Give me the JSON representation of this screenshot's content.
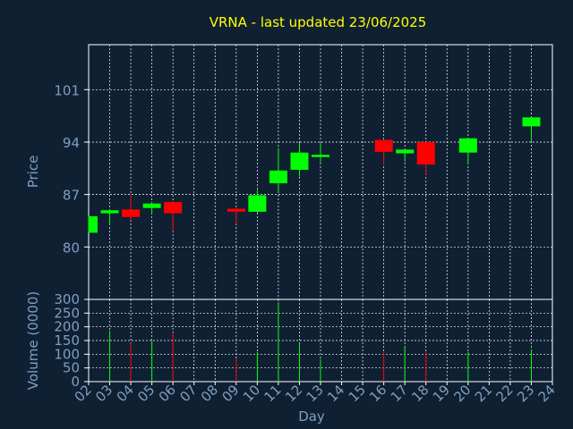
{
  "colors": {
    "background": "#0f2033",
    "title": "#ffff00",
    "axis_text": "#7f9fbf",
    "frame": "#ffffff",
    "grid": "#ffffff",
    "up": "#00ff00",
    "down": "#ff0000"
  },
  "chart_data": [
    {
      "type": "candlestick",
      "title": "VRNA - last updated 23/06/2025",
      "ylabel": "Price",
      "xlabel": "",
      "ylim": [
        73,
        107
      ],
      "yticks": [
        80,
        87,
        94,
        101
      ],
      "xlim": [
        2,
        24
      ],
      "grid": true,
      "candles": [
        {
          "day": 2,
          "open": 81.9,
          "close": 84.1,
          "high": 84.1,
          "low": 81.9
        },
        {
          "day": 3,
          "open": 84.5,
          "close": 84.9,
          "high": 85.0,
          "low": 83.0
        },
        {
          "day": 4,
          "open": 85.0,
          "close": 84.0,
          "high": 87.0,
          "low": 83.6
        },
        {
          "day": 5,
          "open": 85.2,
          "close": 85.8,
          "high": 86.0,
          "low": 84.4
        },
        {
          "day": 6,
          "open": 86.0,
          "close": 84.5,
          "high": 86.1,
          "low": 82.1
        },
        {
          "day": 9,
          "open": 85.1,
          "close": 84.7,
          "high": 85.2,
          "low": 83.1
        },
        {
          "day": 10,
          "open": 84.7,
          "close": 86.9,
          "high": 87.6,
          "low": 84.6
        },
        {
          "day": 11,
          "open": 88.5,
          "close": 90.2,
          "high": 93.2,
          "low": 87.4
        },
        {
          "day": 12,
          "open": 90.3,
          "close": 92.6,
          "high": 93.9,
          "low": 89.4
        },
        {
          "day": 13,
          "open": 92.0,
          "close": 92.3,
          "high": 93.9,
          "low": 91.3
        },
        {
          "day": 16,
          "open": 94.3,
          "close": 92.7,
          "high": 94.3,
          "low": 91.0
        },
        {
          "day": 17,
          "open": 92.5,
          "close": 93.0,
          "high": 93.0,
          "low": 91.4
        },
        {
          "day": 18,
          "open": 94.0,
          "close": 91.0,
          "high": 94.0,
          "low": 89.6
        },
        {
          "day": 20,
          "open": 92.6,
          "close": 94.5,
          "high": 94.6,
          "low": 91.1
        },
        {
          "day": 23,
          "open": 96.1,
          "close": 97.3,
          "high": 97.3,
          "low": 94.1
        }
      ]
    },
    {
      "type": "bar",
      "ylabel": "Volume (0000)",
      "xlabel": "Day",
      "ylim": [
        0,
        300
      ],
      "yticks": [
        0,
        50,
        100,
        150,
        200,
        250,
        300
      ],
      "xlim": [
        2,
        24
      ],
      "categories": [
        "02",
        "03",
        "04",
        "05",
        "06",
        "07",
        "08",
        "09",
        "10",
        "11",
        "12",
        "13",
        "14",
        "15",
        "16",
        "17",
        "18",
        "19",
        "20",
        "21",
        "22",
        "23",
        "24"
      ],
      "grid": true,
      "bars": [
        {
          "day": 3,
          "value": 185,
          "direction": "up"
        },
        {
          "day": 4,
          "value": 140,
          "direction": "down"
        },
        {
          "day": 5,
          "value": 148,
          "direction": "up"
        },
        {
          "day": 6,
          "value": 178,
          "direction": "down"
        },
        {
          "day": 9,
          "value": 85,
          "direction": "down"
        },
        {
          "day": 10,
          "value": 108,
          "direction": "up"
        },
        {
          "day": 11,
          "value": 290,
          "direction": "up"
        },
        {
          "day": 12,
          "value": 140,
          "direction": "up"
        },
        {
          "day": 13,
          "value": 82,
          "direction": "up"
        },
        {
          "day": 16,
          "value": 108,
          "direction": "down"
        },
        {
          "day": 17,
          "value": 125,
          "direction": "up"
        },
        {
          "day": 18,
          "value": 108,
          "direction": "down"
        },
        {
          "day": 20,
          "value": 108,
          "direction": "up"
        },
        {
          "day": 23,
          "value": 118,
          "direction": "up"
        }
      ]
    }
  ]
}
